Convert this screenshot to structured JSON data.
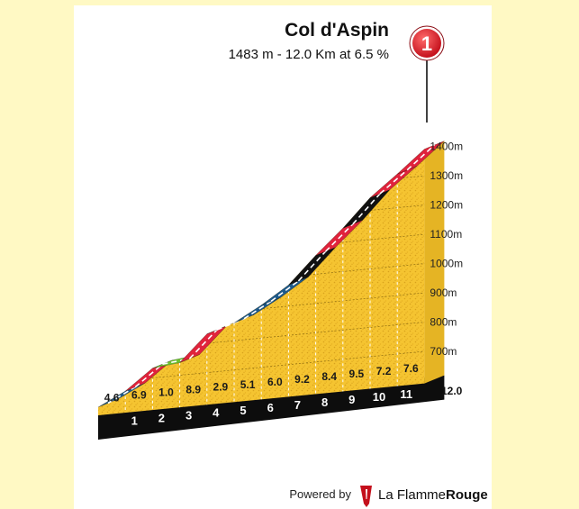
{
  "chart_data": {
    "type": "area",
    "title": "Col d'Aspin",
    "subtitle": "1483 m - 12.0 Km at 6.5 %",
    "marker_label": "1",
    "total_km_label": "12.0",
    "y_ticks": [
      {
        "value": 700,
        "label": "700m"
      },
      {
        "value": 800,
        "label": "800m"
      },
      {
        "value": 900,
        "label": "900m"
      },
      {
        "value": 1000,
        "label": "1000m"
      },
      {
        "value": 1100,
        "label": "1100m"
      },
      {
        "value": 1200,
        "label": "1200m"
      },
      {
        "value": 1300,
        "label": "1300m"
      },
      {
        "value": 1400,
        "label": "1400m"
      }
    ],
    "km_labels": [
      "1",
      "2",
      "3",
      "4",
      "5",
      "6",
      "7",
      "8",
      "9",
      "10",
      "11"
    ],
    "segments": [
      {
        "km_start": 0,
        "km_end": 1,
        "grade": 4.6,
        "grade_label": "4.6",
        "color": "#1e5a8a"
      },
      {
        "km_start": 1,
        "km_end": 2,
        "grade": 6.9,
        "grade_label": "6.9",
        "color": "#e0233c"
      },
      {
        "km_start": 2,
        "km_end": 3,
        "grade": 1.0,
        "grade_label": "1.0",
        "color": "#6cc22e"
      },
      {
        "km_start": 3,
        "km_end": 4,
        "grade": 8.9,
        "grade_label": "8.9",
        "color": "#e0233c"
      },
      {
        "km_start": 4,
        "km_end": 5,
        "grade": 2.9,
        "grade_label": "2.9",
        "color": "#6cc22e"
      },
      {
        "km_start": 5,
        "km_end": 6,
        "grade": 5.1,
        "grade_label": "5.1",
        "color": "#1e5a8a"
      },
      {
        "km_start": 6,
        "km_end": 7,
        "grade": 6.0,
        "grade_label": "6.0",
        "color": "#1e5a8a"
      },
      {
        "km_start": 7,
        "km_end": 8,
        "grade": 9.2,
        "grade_label": "9.2",
        "color": "#111111"
      },
      {
        "km_start": 8,
        "km_end": 9,
        "grade": 8.4,
        "grade_label": "8.4",
        "color": "#e0233c"
      },
      {
        "km_start": 9,
        "km_end": 10,
        "grade": 9.5,
        "grade_label": "9.5",
        "color": "#111111"
      },
      {
        "km_start": 10,
        "km_end": 11,
        "grade": 7.2,
        "grade_label": "7.2",
        "color": "#e0233c"
      },
      {
        "km_start": 11,
        "km_end": 12,
        "grade": 7.6,
        "grade_label": "7.6",
        "color": "#e0233c"
      }
    ],
    "xlim": [
      0,
      12
    ],
    "ylim": [
      700,
      1400
    ],
    "grid": true
  },
  "footer": {
    "powered_by": "Powered by",
    "brand_first": "La Flamme",
    "brand_second": "Rouge"
  }
}
